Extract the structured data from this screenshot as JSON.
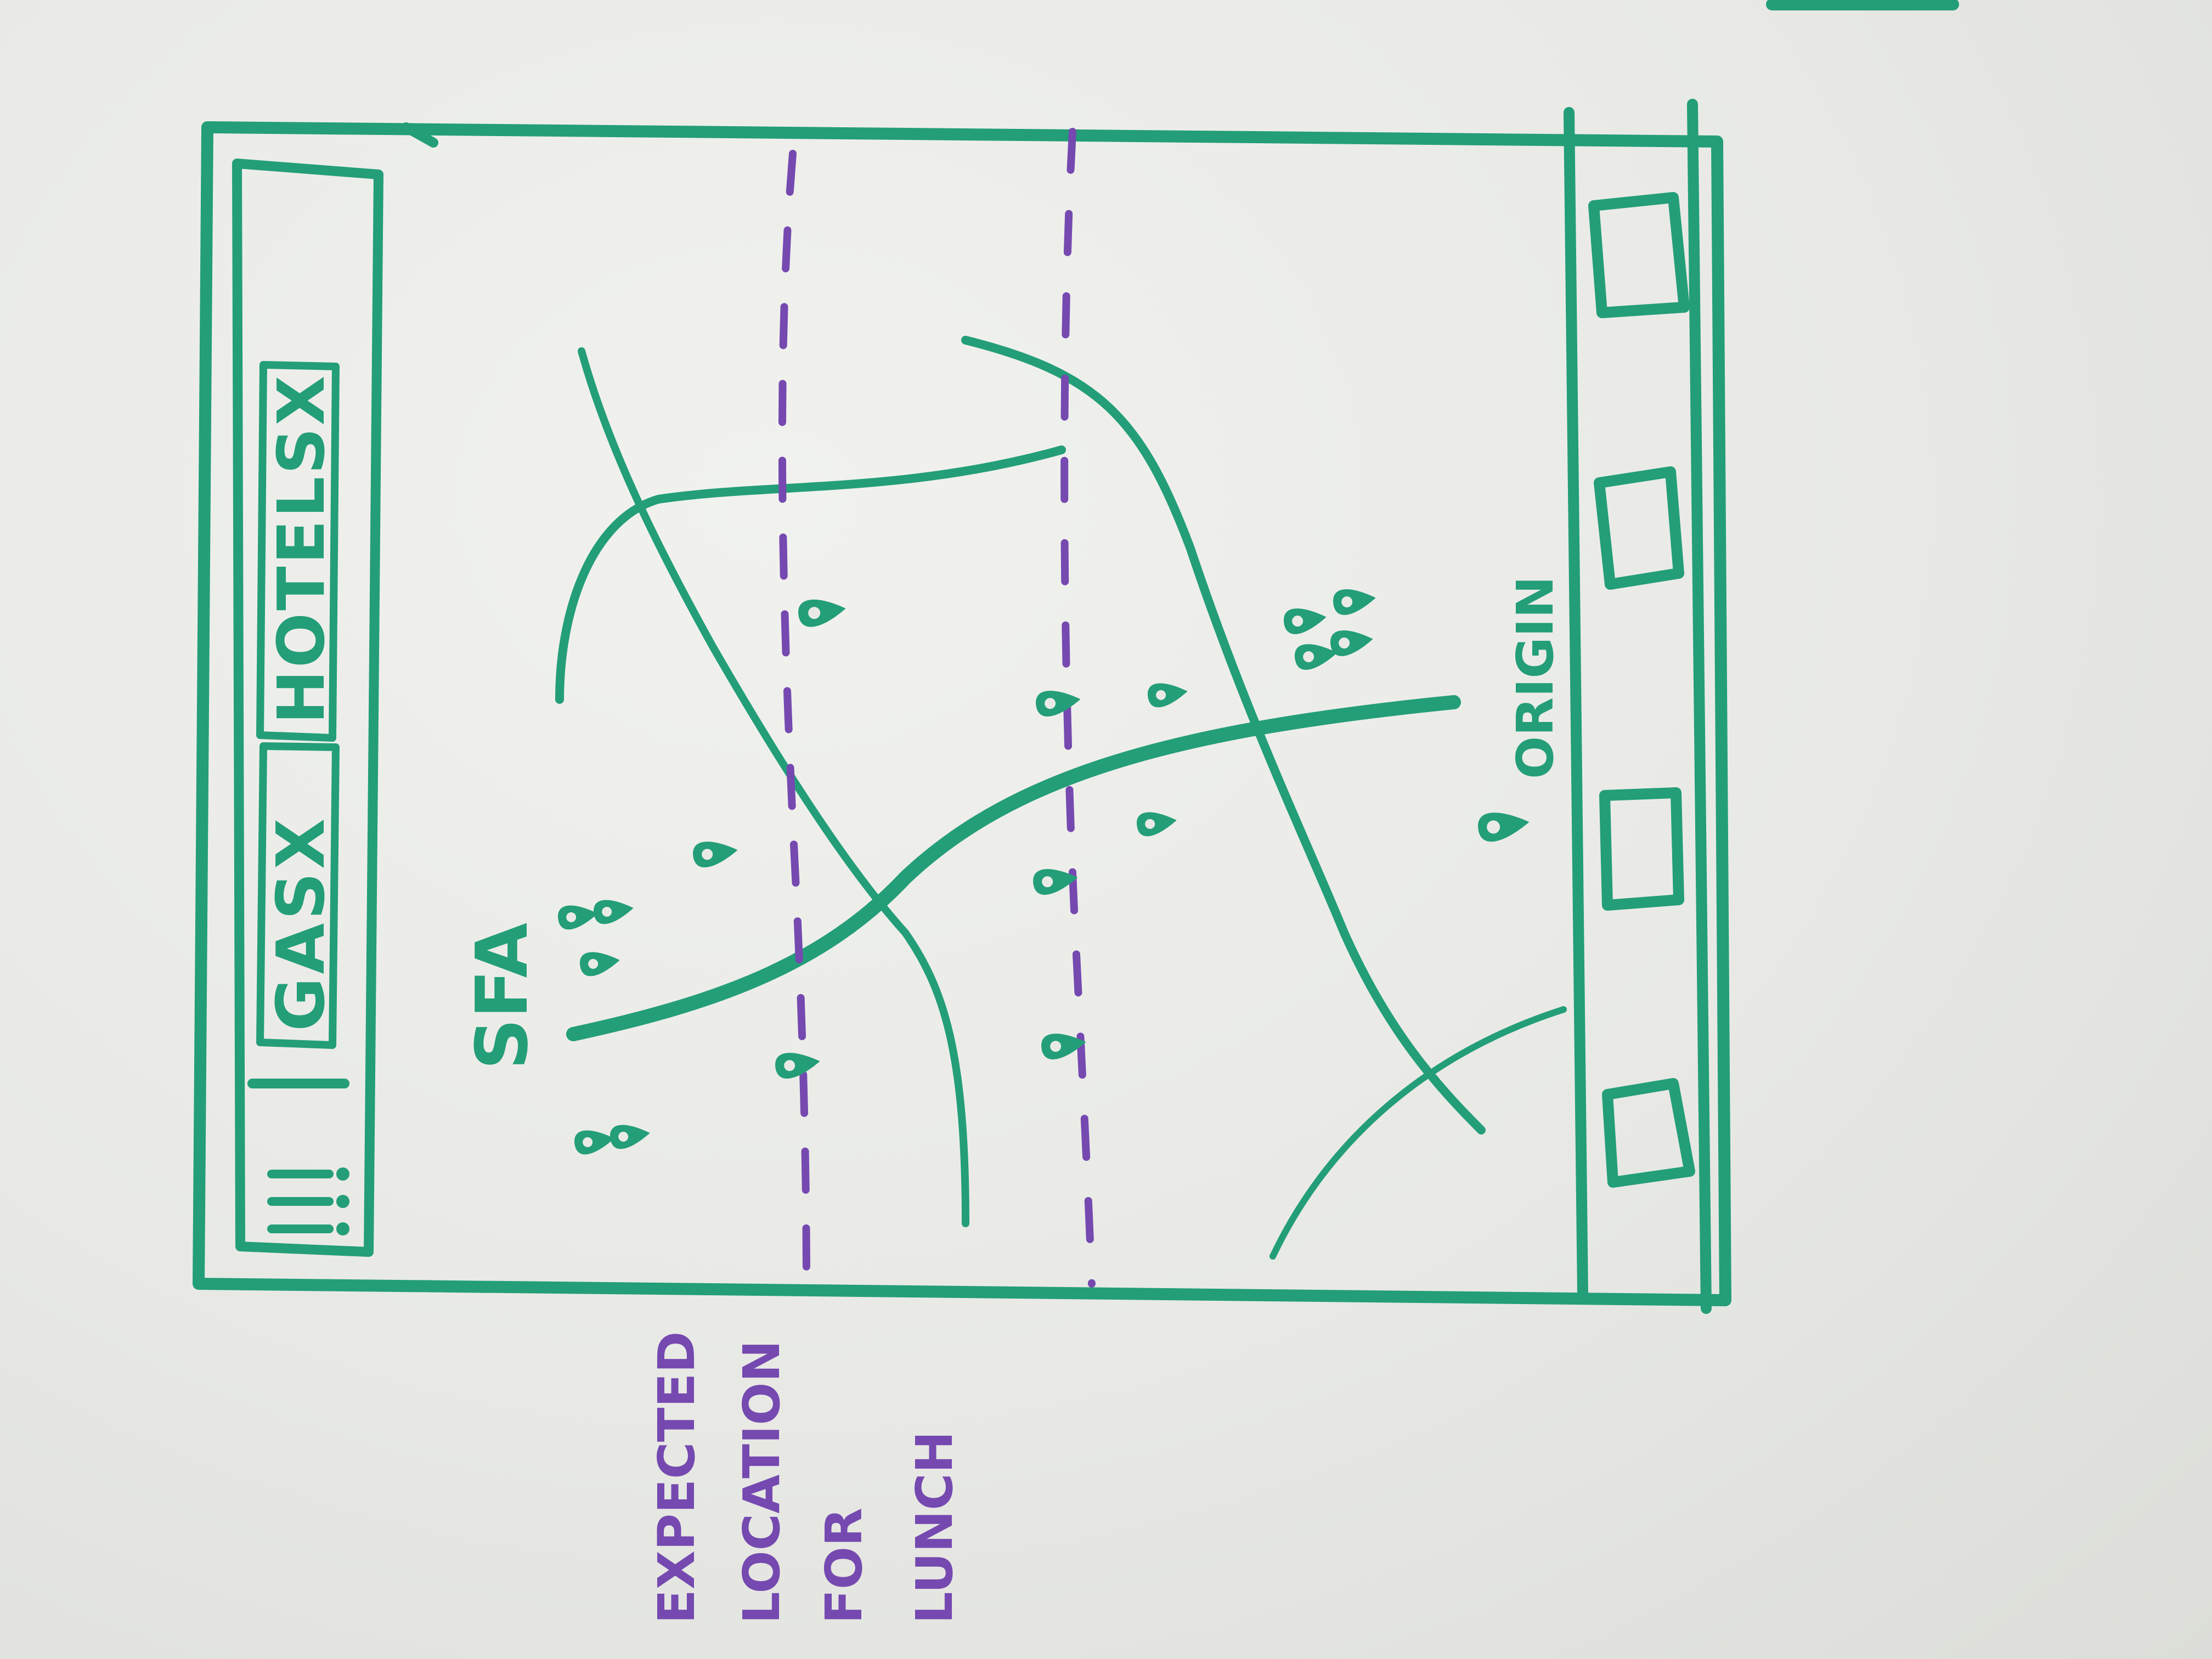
{
  "tabs": [
    {
      "label": "GASX"
    },
    {
      "label": "HOTELSX"
    }
  ],
  "menu": {
    "icon": "menu-icon",
    "glyph": "!!!"
  },
  "map": {
    "start_label": "SFA",
    "origin_label": "ORIGIN"
  },
  "annotation": {
    "lines": [
      "EXPECTED",
      "LOCATION",
      "FOR",
      "LUNCH"
    ]
  },
  "bottom_bar": {
    "buttons": [
      {
        "icon": "square-icon"
      },
      {
        "icon": "square-icon"
      },
      {
        "icon": "square-icon"
      },
      {
        "icon": "square-icon"
      }
    ]
  },
  "colors": {
    "marker_green": "#239e78",
    "marker_purple": "#7549b0",
    "board": "#e9eae6"
  }
}
